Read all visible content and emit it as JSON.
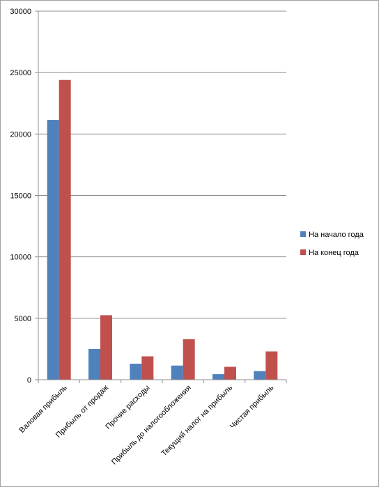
{
  "chart_data": {
    "type": "bar",
    "title": "",
    "xlabel": "",
    "ylabel": "",
    "ylim": [
      0,
      30000
    ],
    "yticks": [
      0,
      5000,
      10000,
      15000,
      20000,
      25000,
      30000
    ],
    "grid": true,
    "legend_position": "right",
    "categories": [
      "Валовая прибыль",
      "Прибыль от продаж",
      "Прочие расходы",
      "Прибыль до налогообложения",
      "Текущий налог на прибыль",
      "Чистая прибыль"
    ],
    "series": [
      {
        "name": "На начало года",
        "color": "#4f81bd",
        "values": [
          21150,
          2500,
          1300,
          1150,
          450,
          700
        ]
      },
      {
        "name": "На конец года",
        "color": "#c0504d",
        "values": [
          24400,
          5250,
          1900,
          3300,
          1050,
          2300
        ]
      }
    ]
  }
}
